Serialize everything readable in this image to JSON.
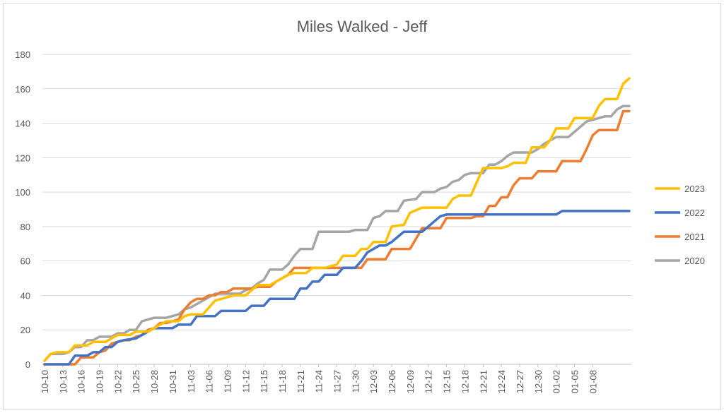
{
  "chart_data": {
    "type": "line",
    "title": "Miles Walked - Jeff",
    "xlabel": "",
    "ylabel": "",
    "ylim": [
      0,
      180
    ],
    "yticks": [
      0,
      20,
      40,
      60,
      80,
      100,
      120,
      140,
      160,
      180
    ],
    "grid": "horizontal",
    "legend_position": "right",
    "x_tick_labels": [
      "10-10",
      "10-13",
      "10-16",
      "10-19",
      "10-22",
      "10-25",
      "10-28",
      "10-31",
      "11-03",
      "11-06",
      "11-09",
      "11-12",
      "11-15",
      "11-18",
      "11-21",
      "11-24",
      "11-27",
      "11-30",
      "12-03",
      "12-06",
      "12-09",
      "12-12",
      "12-15",
      "12-18",
      "12-21",
      "12-24",
      "12-27",
      "12-30",
      "01-02",
      "01-05",
      "01-08"
    ],
    "x_day_count": 93,
    "series": [
      {
        "name": "2023",
        "color": "#FFC000",
        "points": [
          [
            0,
            2
          ],
          [
            1,
            6
          ],
          [
            2,
            7
          ],
          [
            4,
            7
          ],
          [
            5,
            11
          ],
          [
            7,
            11
          ],
          [
            8,
            13
          ],
          [
            10,
            13
          ],
          [
            11,
            15
          ],
          [
            12,
            17
          ],
          [
            14,
            17
          ],
          [
            15,
            19
          ],
          [
            17,
            19
          ],
          [
            18,
            21
          ],
          [
            19,
            23
          ],
          [
            20,
            25
          ],
          [
            22,
            25
          ],
          [
            23,
            28
          ],
          [
            24,
            29
          ],
          [
            26,
            29
          ],
          [
            27,
            33
          ],
          [
            28,
            37
          ],
          [
            30,
            39
          ],
          [
            31,
            40
          ],
          [
            33,
            40
          ],
          [
            34,
            43
          ],
          [
            35,
            46
          ],
          [
            37,
            46
          ],
          [
            38,
            48
          ],
          [
            40,
            52
          ],
          [
            41,
            53
          ],
          [
            43,
            53
          ],
          [
            44,
            56
          ],
          [
            46,
            56
          ],
          [
            47,
            57
          ],
          [
            48,
            58
          ],
          [
            49,
            63
          ],
          [
            51,
            63
          ],
          [
            52,
            67
          ],
          [
            53,
            67
          ],
          [
            54,
            71
          ],
          [
            56,
            71
          ],
          [
            57,
            80
          ],
          [
            59,
            81
          ],
          [
            60,
            88
          ],
          [
            62,
            91
          ],
          [
            66,
            91
          ],
          [
            67,
            96
          ],
          [
            68,
            98
          ],
          [
            70,
            98
          ],
          [
            71,
            106
          ],
          [
            72,
            114
          ],
          [
            75,
            114
          ],
          [
            76,
            115
          ],
          [
            77,
            117
          ],
          [
            79,
            117
          ],
          [
            80,
            126
          ],
          [
            82,
            126
          ],
          [
            83,
            130
          ],
          [
            84,
            137
          ],
          [
            86,
            137
          ],
          [
            87,
            143
          ],
          [
            90,
            143
          ],
          [
            91,
            150
          ],
          [
            92,
            154
          ],
          [
            94,
            154
          ],
          [
            95,
            163
          ],
          [
            96,
            166
          ]
        ]
      },
      {
        "name": "2022",
        "color": "#4472C4",
        "points": [
          [
            0,
            0
          ],
          [
            4,
            0
          ],
          [
            5,
            5
          ],
          [
            7,
            5
          ],
          [
            8,
            7
          ],
          [
            9,
            7
          ],
          [
            10,
            10
          ],
          [
            11,
            10
          ],
          [
            12,
            13
          ],
          [
            13,
            14
          ],
          [
            15,
            15
          ],
          [
            16,
            17
          ],
          [
            17,
            19
          ],
          [
            18,
            21
          ],
          [
            20,
            21
          ],
          [
            21,
            21
          ],
          [
            22,
            23
          ],
          [
            24,
            23
          ],
          [
            25,
            28
          ],
          [
            28,
            28
          ],
          [
            29,
            31
          ],
          [
            33,
            31
          ],
          [
            34,
            34
          ],
          [
            36,
            34
          ],
          [
            37,
            38
          ],
          [
            41,
            38
          ],
          [
            42,
            44
          ],
          [
            43,
            44
          ],
          [
            44,
            48
          ],
          [
            45,
            48
          ],
          [
            46,
            52
          ],
          [
            48,
            52
          ],
          [
            49,
            56
          ],
          [
            51,
            56
          ],
          [
            52,
            60
          ],
          [
            53,
            65
          ],
          [
            54,
            67
          ],
          [
            55,
            69
          ],
          [
            56,
            69
          ],
          [
            57,
            71
          ],
          [
            58,
            74
          ],
          [
            59,
            77
          ],
          [
            62,
            77
          ],
          [
            63,
            80
          ],
          [
            64,
            83
          ],
          [
            65,
            86
          ],
          [
            66,
            87
          ],
          [
            77,
            87
          ],
          [
            78,
            87
          ],
          [
            79,
            87
          ],
          [
            80,
            87
          ],
          [
            81,
            87
          ],
          [
            82,
            87
          ],
          [
            83,
            87
          ],
          [
            84,
            87
          ],
          [
            85,
            89
          ],
          [
            96,
            89
          ]
        ]
      },
      {
        "name": "2021",
        "color": "#ED7D31",
        "points": [
          [
            0,
            0
          ],
          [
            5,
            0
          ],
          [
            6,
            4
          ],
          [
            8,
            4
          ],
          [
            9,
            7
          ],
          [
            10,
            8
          ],
          [
            11,
            12
          ],
          [
            12,
            13
          ],
          [
            13,
            14
          ],
          [
            14,
            14
          ],
          [
            15,
            16
          ],
          [
            16,
            17
          ],
          [
            17,
            20
          ],
          [
            18,
            21
          ],
          [
            19,
            24
          ],
          [
            20,
            24
          ],
          [
            21,
            25
          ],
          [
            22,
            26
          ],
          [
            23,
            32
          ],
          [
            24,
            36
          ],
          [
            25,
            38
          ],
          [
            26,
            38
          ],
          [
            27,
            40
          ],
          [
            28,
            40
          ],
          [
            29,
            42
          ],
          [
            30,
            42
          ],
          [
            31,
            44
          ],
          [
            34,
            44
          ],
          [
            35,
            45
          ],
          [
            37,
            45
          ],
          [
            38,
            48
          ],
          [
            40,
            52
          ],
          [
            41,
            56
          ],
          [
            43,
            56
          ],
          [
            44,
            56
          ],
          [
            52,
            56
          ],
          [
            53,
            61
          ],
          [
            56,
            61
          ],
          [
            57,
            67
          ],
          [
            60,
            67
          ],
          [
            61,
            73
          ],
          [
            62,
            79
          ],
          [
            65,
            79
          ],
          [
            66,
            85
          ],
          [
            70,
            85
          ],
          [
            71,
            86
          ],
          [
            72,
            86
          ],
          [
            73,
            92
          ],
          [
            74,
            92
          ],
          [
            75,
            97
          ],
          [
            76,
            97
          ],
          [
            77,
            104
          ],
          [
            78,
            108
          ],
          [
            80,
            108
          ],
          [
            81,
            112
          ],
          [
            84,
            112
          ],
          [
            85,
            118
          ],
          [
            88,
            118
          ],
          [
            89,
            125
          ],
          [
            90,
            133
          ],
          [
            91,
            136
          ],
          [
            94,
            136
          ],
          [
            95,
            147
          ],
          [
            96,
            147
          ]
        ]
      },
      {
        "name": "2020",
        "color": "#A5A5A5",
        "points": [
          [
            0,
            2
          ],
          [
            1,
            6
          ],
          [
            3,
            6
          ],
          [
            4,
            7
          ],
          [
            5,
            10
          ],
          [
            6,
            10
          ],
          [
            7,
            14
          ],
          [
            8,
            14
          ],
          [
            9,
            16
          ],
          [
            11,
            16
          ],
          [
            12,
            18
          ],
          [
            13,
            18
          ],
          [
            14,
            20
          ],
          [
            15,
            20
          ],
          [
            16,
            25
          ],
          [
            17,
            26
          ],
          [
            18,
            27
          ],
          [
            20,
            27
          ],
          [
            21,
            28
          ],
          [
            22,
            29
          ],
          [
            23,
            32
          ],
          [
            24,
            33
          ],
          [
            25,
            35
          ],
          [
            26,
            37
          ],
          [
            27,
            39
          ],
          [
            28,
            41
          ],
          [
            29,
            41
          ],
          [
            32,
            41
          ],
          [
            33,
            43
          ],
          [
            34,
            44
          ],
          [
            35,
            47
          ],
          [
            36,
            49
          ],
          [
            37,
            55
          ],
          [
            39,
            55
          ],
          [
            40,
            58
          ],
          [
            41,
            63
          ],
          [
            42,
            67
          ],
          [
            44,
            67
          ],
          [
            45,
            77
          ],
          [
            50,
            77
          ],
          [
            51,
            78
          ],
          [
            53,
            78
          ],
          [
            54,
            85
          ],
          [
            55,
            86
          ],
          [
            56,
            89
          ],
          [
            58,
            89
          ],
          [
            59,
            95
          ],
          [
            61,
            96
          ],
          [
            62,
            100
          ],
          [
            64,
            100
          ],
          [
            65,
            102
          ],
          [
            66,
            103
          ],
          [
            67,
            106
          ],
          [
            68,
            107
          ],
          [
            69,
            110
          ],
          [
            70,
            111
          ],
          [
            72,
            111
          ],
          [
            73,
            116
          ],
          [
            74,
            116
          ],
          [
            75,
            118
          ],
          [
            76,
            121
          ],
          [
            77,
            123
          ],
          [
            80,
            123
          ],
          [
            81,
            125
          ],
          [
            82,
            128
          ],
          [
            83,
            130
          ],
          [
            84,
            132
          ],
          [
            86,
            132
          ],
          [
            87,
            135
          ],
          [
            88,
            138
          ],
          [
            89,
            141
          ],
          [
            92,
            144
          ],
          [
            93,
            144
          ],
          [
            94,
            148
          ],
          [
            95,
            150
          ],
          [
            96,
            150
          ]
        ]
      }
    ]
  }
}
